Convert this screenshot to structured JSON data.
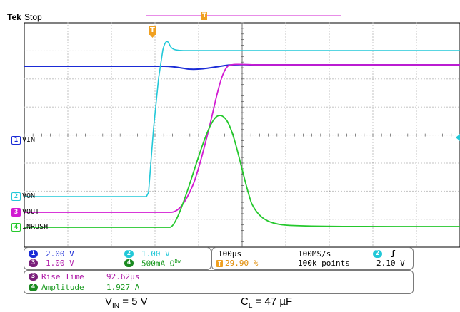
{
  "header": {
    "brand": "Tek",
    "status": "Stop"
  },
  "channels": [
    {
      "id": "1",
      "label": "VIN",
      "color": "#1a2bd6"
    },
    {
      "id": "2",
      "label": "VON",
      "color": "#22c8d8"
    },
    {
      "id": "3",
      "label": "VOUT",
      "color": "#d21bd2"
    },
    {
      "id": "4",
      "label": "INRUSH",
      "color": "#24c82c"
    }
  ],
  "trigger_marker": "T",
  "settings": {
    "ch1_scale": "2.00 V",
    "ch2_scale": "1.00 V",
    "ch3_scale": "1.00 V",
    "ch4_scale": "500mA Ω",
    "ch4_bw": "Bw",
    "timebase": "100µs",
    "sample_rate": "100MS/s",
    "trigger_position": "29.90 %",
    "record_length": "100k points",
    "trigger_channel": "2",
    "trigger_slope": "ʃ",
    "trigger_level": "2.10 V"
  },
  "measurements": [
    {
      "channel": "3",
      "name": "Rise Time",
      "value": "92.62µs",
      "color": "#d21bd2"
    },
    {
      "channel": "4",
      "name": "Amplitude",
      "value": "1.927 A",
      "color": "#24c82c"
    }
  ],
  "caption": {
    "vin": "V",
    "vin_sub": "IN",
    "vin_value": "= 5 V",
    "cl": "C",
    "cl_sub": "L",
    "cl_value": "= 47 µF"
  }
}
